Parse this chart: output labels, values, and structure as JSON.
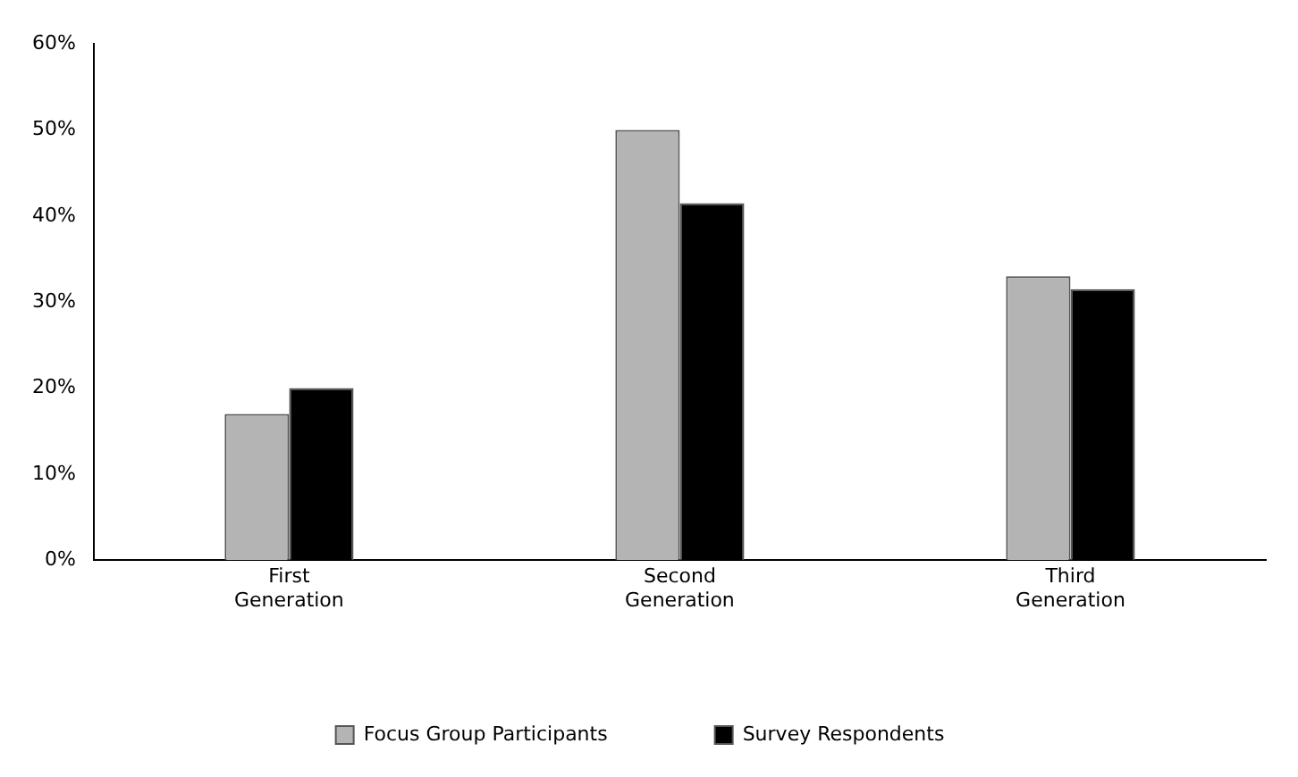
{
  "chart_data": {
    "type": "bar",
    "categories": [
      "First Generation",
      "Second Generation",
      "Third Generation"
    ],
    "series": [
      {
        "name": "Focus Group Participants",
        "color": "#b4b4b4",
        "values": [
          17,
          50,
          33
        ]
      },
      {
        "name": "Survey Respondents",
        "color": "#000000",
        "values": [
          20,
          41.5,
          31.5
        ]
      }
    ],
    "ylim": [
      0,
      60
    ],
    "yticks": [
      {
        "value": 0,
        "label": "0%"
      },
      {
        "value": 10,
        "label": "10%"
      },
      {
        "value": 20,
        "label": "20%"
      },
      {
        "value": 30,
        "label": "30%"
      },
      {
        "value": 40,
        "label": "40%"
      },
      {
        "value": 50,
        "label": "50%"
      },
      {
        "value": 60,
        "label": "60%"
      }
    ],
    "grid": false,
    "legend": "bottom"
  }
}
